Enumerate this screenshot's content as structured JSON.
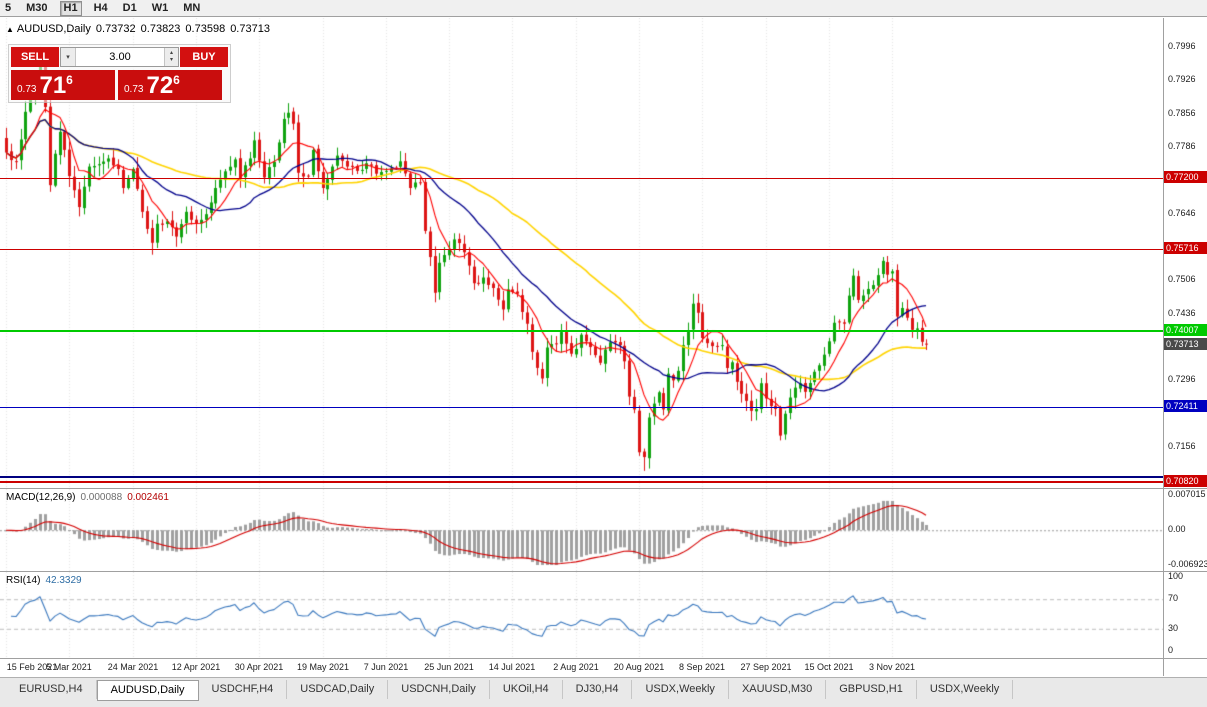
{
  "toolbar": {
    "items": [
      "5",
      "M30",
      "H1",
      "H4",
      "D1",
      "W1",
      "MN"
    ],
    "active": "H1"
  },
  "ohlc": {
    "icon": "▲",
    "symbol": "AUDUSD,Daily",
    "open": "0.73732",
    "high": "0.73823",
    "low": "0.73598",
    "close": "0.73713"
  },
  "trade_panel": {
    "sell_label": "SELL",
    "buy_label": "BUY",
    "volume": "3.00",
    "dropdown_icon": "▾",
    "spin_up_icon": "▴",
    "spin_down_icon": "▾",
    "sell_price": {
      "prefix": "0.73",
      "big": "71",
      "sup": "6"
    },
    "buy_price": {
      "prefix": "0.73",
      "big": "72",
      "sup": "6"
    }
  },
  "price_axis": {
    "labels": [
      "0.7996",
      "0.7926",
      "0.7856",
      "0.7786",
      "0.7646",
      "0.7506",
      "0.7436",
      "0.7296",
      "0.7156"
    ]
  },
  "h_lines": [
    {
      "price": 0.772,
      "label": "0.77200",
      "color": "#cc0000",
      "thickness": 1
    },
    {
      "price": 0.75716,
      "label": "0.75716",
      "color": "#cc0000",
      "thickness": 1
    },
    {
      "price": 0.74007,
      "label": "0.74007",
      "color": "#00ca00",
      "thickness": 2
    },
    {
      "price": 0.72411,
      "label": "0.72411",
      "color": "#0000c0",
      "thickness": 1
    },
    {
      "price": 0.7093,
      "label": "",
      "color": "#000080",
      "thickness": 2
    },
    {
      "price": 0.7082,
      "label": "0.70820",
      "color": "#cc0000",
      "thickness": 2
    }
  ],
  "current_price": {
    "text": "0.73713",
    "value": 0.73713,
    "bg": "#4a4a4a"
  },
  "macd_panel": {
    "title": "MACD(12,26,9)",
    "value_main": "0.000088",
    "value_signal": "0.002461",
    "axis": [
      {
        "text": "0.007015",
        "value": 0.007015
      },
      {
        "text": "0.00",
        "value": 0
      },
      {
        "text": "-0.006923",
        "value": -0.006923
      }
    ]
  },
  "rsi_panel": {
    "title": "RSI(14)",
    "value": "42.3329",
    "axis": [
      {
        "text": "100",
        "value": 100
      },
      {
        "text": "70",
        "value": 70
      },
      {
        "text": "30",
        "value": 30
      },
      {
        "text": "0",
        "value": 0
      }
    ],
    "levels": [
      70,
      30
    ]
  },
  "date_axis": {
    "labels": [
      "15 Feb 2021",
      "5 Mar 2021",
      "24 Mar 2021",
      "12 Apr 2021",
      "30 Apr 2021",
      "19 May 2021",
      "7 Jun 2021",
      "25 Jun 2021",
      "14 Jul 2021",
      "2 Aug 2021",
      "20 Aug 2021",
      "8 Sep 2021",
      "27 Sep 2021",
      "15 Oct 2021",
      "3 Nov 2021"
    ],
    "tick_step": 13
  },
  "tabs": {
    "items": [
      "EURUSD,H4",
      "AUDUSD,Daily",
      "USDCHF,H4",
      "USDCAD,Daily",
      "USDCNH,Daily",
      "UKOil,H4",
      "DJ30,H4",
      "USDX,Weekly",
      "XAUUSD,M30",
      "GBPUSD,H1",
      "USDX,Weekly"
    ],
    "active_index": 1
  },
  "colors": {
    "candle_up": "#0fa30f",
    "candle_down": "#dd1515",
    "ma_fast": "#ff0000",
    "ma_mid": "#00008b",
    "ma_slow": "#ffd400",
    "macd_hist": "#a0a0a0",
    "macd_signal": "#d40000",
    "rsi_line": "#3a78be",
    "grid": "#e6e6e6",
    "level_dash": "#bdbdbd",
    "axis_text": "#1a1a1a",
    "trade_red": "#d31010",
    "current_price_bg": "#4a4a4a"
  },
  "chart_data": {
    "type": "candlestick",
    "symbol": "AUDUSD",
    "timeframe": "Daily",
    "count": 190,
    "price_range_top": 0.8057,
    "price_range_bottom": 0.707,
    "close_anchors": [
      [
        0,
        0.7775
      ],
      [
        2,
        0.7756
      ],
      [
        4,
        0.786
      ],
      [
        6,
        0.7912
      ],
      [
        7,
        0.7965
      ],
      [
        8,
        0.787
      ],
      [
        9,
        0.7706
      ],
      [
        10,
        0.7772
      ],
      [
        11,
        0.7818
      ],
      [
        12,
        0.778
      ],
      [
        13,
        0.7725
      ],
      [
        15,
        0.766
      ],
      [
        17,
        0.7745
      ],
      [
        19,
        0.775
      ],
      [
        21,
        0.7762
      ],
      [
        23,
        0.774
      ],
      [
        24,
        0.77
      ],
      [
        26,
        0.774
      ],
      [
        28,
        0.765
      ],
      [
        30,
        0.7585
      ],
      [
        31,
        0.7625
      ],
      [
        33,
        0.763
      ],
      [
        35,
        0.7598
      ],
      [
        37,
        0.765
      ],
      [
        39,
        0.7625
      ],
      [
        41,
        0.7645
      ],
      [
        43,
        0.77
      ],
      [
        45,
        0.7735
      ],
      [
        47,
        0.776
      ],
      [
        48,
        0.772
      ],
      [
        50,
        0.7762
      ],
      [
        51,
        0.78
      ],
      [
        53,
        0.7722
      ],
      [
        55,
        0.7755
      ],
      [
        57,
        0.7845
      ],
      [
        58,
        0.7858
      ],
      [
        59,
        0.7835
      ],
      [
        60,
        0.7732
      ],
      [
        62,
        0.7726
      ],
      [
        63,
        0.778
      ],
      [
        65,
        0.77
      ],
      [
        67,
        0.7745
      ],
      [
        68,
        0.7768
      ],
      [
        70,
        0.7745
      ],
      [
        72,
        0.7736
      ],
      [
        74,
        0.7752
      ],
      [
        76,
        0.773
      ],
      [
        78,
        0.7736
      ],
      [
        80,
        0.7742
      ],
      [
        81,
        0.7756
      ],
      [
        83,
        0.77
      ],
      [
        85,
        0.771
      ],
      [
        86,
        0.761
      ],
      [
        87,
        0.7555
      ],
      [
        88,
        0.748
      ],
      [
        89,
        0.7543
      ],
      [
        91,
        0.7572
      ],
      [
        92,
        0.7592
      ],
      [
        94,
        0.7565
      ],
      [
        96,
        0.75
      ],
      [
        98,
        0.7512
      ],
      [
        100,
        0.749
      ],
      [
        102,
        0.7445
      ],
      [
        103,
        0.7487
      ],
      [
        105,
        0.7478
      ],
      [
        107,
        0.7415
      ],
      [
        108,
        0.7356
      ],
      [
        110,
        0.73
      ],
      [
        111,
        0.7365
      ],
      [
        113,
        0.7372
      ],
      [
        114,
        0.7398
      ],
      [
        116,
        0.7352
      ],
      [
        117,
        0.7362
      ],
      [
        118,
        0.7392
      ],
      [
        120,
        0.7366
      ],
      [
        122,
        0.7333
      ],
      [
        124,
        0.7376
      ],
      [
        126,
        0.737
      ],
      [
        127,
        0.7336
      ],
      [
        128,
        0.7262
      ],
      [
        129,
        0.7235
      ],
      [
        130,
        0.7145
      ],
      [
        131,
        0.7135
      ],
      [
        132,
        0.7218
      ],
      [
        134,
        0.7271
      ],
      [
        135,
        0.7235
      ],
      [
        136,
        0.731
      ],
      [
        137,
        0.7296
      ],
      [
        138,
        0.7316
      ],
      [
        139,
        0.737
      ],
      [
        140,
        0.74
      ],
      [
        141,
        0.7457
      ],
      [
        142,
        0.7438
      ],
      [
        143,
        0.7385
      ],
      [
        145,
        0.7368
      ],
      [
        147,
        0.737
      ],
      [
        148,
        0.7322
      ],
      [
        149,
        0.7334
      ],
      [
        150,
        0.7293
      ],
      [
        152,
        0.7253
      ],
      [
        153,
        0.7232
      ],
      [
        154,
        0.7236
      ],
      [
        155,
        0.729
      ],
      [
        156,
        0.7258
      ],
      [
        158,
        0.7236
      ],
      [
        159,
        0.718
      ],
      [
        160,
        0.7226
      ],
      [
        161,
        0.726
      ],
      [
        163,
        0.729
      ],
      [
        164,
        0.7272
      ],
      [
        166,
        0.7314
      ],
      [
        168,
        0.735
      ],
      [
        169,
        0.7378
      ],
      [
        170,
        0.7417
      ],
      [
        172,
        0.7415
      ],
      [
        173,
        0.7474
      ],
      [
        174,
        0.7516
      ],
      [
        175,
        0.7465
      ],
      [
        177,
        0.7488
      ],
      [
        179,
        0.7517
      ],
      [
        180,
        0.7547
      ],
      [
        181,
        0.7518
      ],
      [
        182,
        0.7525
      ],
      [
        183,
        0.743
      ],
      [
        184,
        0.7448
      ],
      [
        186,
        0.7402
      ],
      [
        187,
        0.7405
      ],
      [
        188,
        0.7377
      ],
      [
        189,
        0.73713
      ]
    ],
    "wick_overrides": {
      "7": {
        "h": 0.7995
      },
      "9": {
        "l": 0.7692
      },
      "30": {
        "l": 0.756
      },
      "65": {
        "l": 0.7688
      },
      "88": {
        "l": 0.746
      },
      "110": {
        "l": 0.7289
      },
      "131": {
        "l": 0.7106
      },
      "141": {
        "h": 0.7478
      },
      "159": {
        "l": 0.717
      },
      "180": {
        "h": 0.7555
      }
    },
    "last_candle": {
      "o": 0.73732,
      "h": 0.73823,
      "l": 0.73598,
      "c": 0.73713
    },
    "ma_periods": {
      "fast": 7,
      "mid": 21,
      "slow": 45
    },
    "macd": {
      "fast": 12,
      "slow": 26,
      "signal": 9
    },
    "rsi_period": 14
  }
}
